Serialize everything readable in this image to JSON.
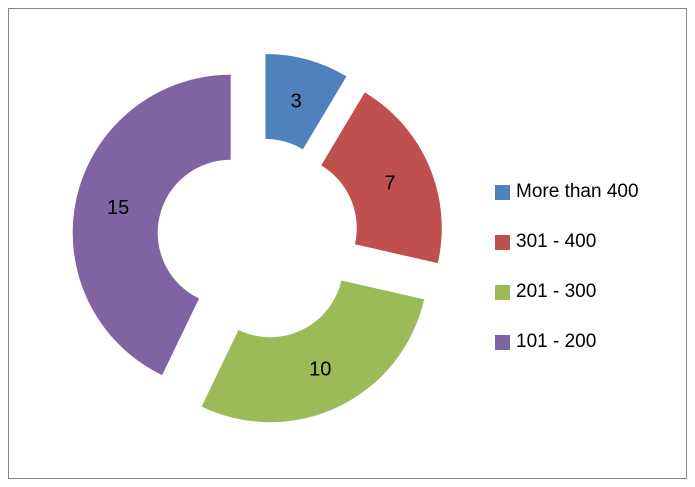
{
  "chart_data": {
    "type": "pie",
    "variant": "exploded-doughnut",
    "categories": [
      "More than 400",
      "301 - 400",
      "201 - 300",
      "101 - 200"
    ],
    "values": [
      3,
      7,
      10,
      15
    ],
    "colors": [
      "#4F81BD",
      "#C0504D",
      "#9BBB59",
      "#8064A2"
    ],
    "data_labels": [
      "3",
      "7",
      "10",
      "15"
    ],
    "legend": {
      "position": "right",
      "items": [
        {
          "label": "More than 400",
          "color": "#4F81BD"
        },
        {
          "label": "301 - 400",
          "color": "#C0504D"
        },
        {
          "label": "201 - 300",
          "color": "#9BBB59"
        },
        {
          "label": "101 - 200",
          "color": "#8064A2"
        }
      ]
    }
  }
}
